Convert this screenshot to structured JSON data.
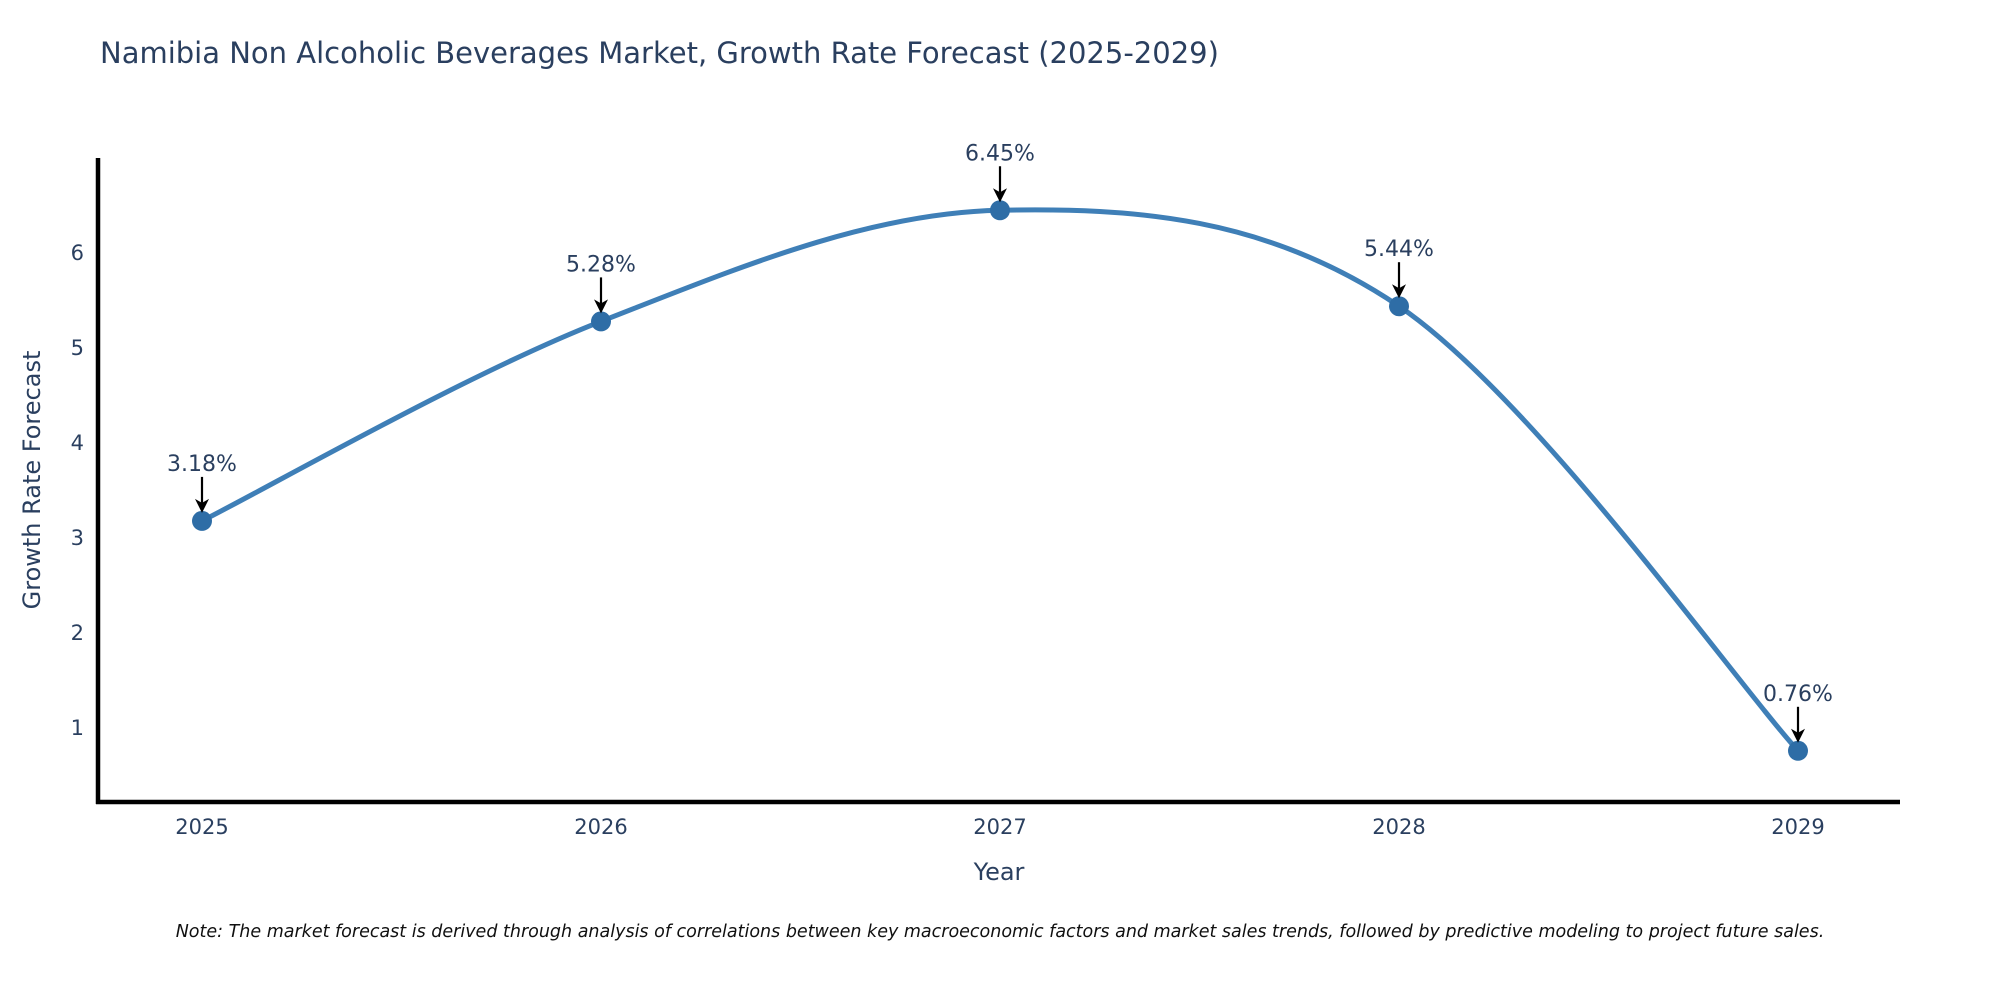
{
  "page": {
    "background": "#ffffff"
  },
  "chart_data": {
    "type": "line",
    "title": "Namibia Non Alcoholic Beverages Market, Growth Rate Forecast (2025-2029)",
    "xlabel": "Year",
    "ylabel": "Growth Rate Forecast",
    "categories": [
      "2025",
      "2026",
      "2027",
      "2028",
      "2029"
    ],
    "series": [
      {
        "name": "Growth Rate Forecast",
        "values": [
          3.18,
          5.28,
          6.45,
          5.44,
          0.76
        ]
      }
    ],
    "point_labels": [
      "3.18%",
      "5.28%",
      "6.45%",
      "5.44%",
      "0.76%"
    ],
    "y_ticks": [
      1,
      2,
      3,
      4,
      5,
      6
    ],
    "ylim": [
      0.3,
      6.8
    ],
    "line_shape": "spline",
    "grid": false,
    "legend": false,
    "colors": {
      "line": "#3f7fb7",
      "marker": "#2e6da6",
      "annotation_arrow": "#000000",
      "axis_line": "#000000",
      "text": "#2a3f5f"
    }
  },
  "footnote": "Note: The market forecast is derived through analysis of correlations between key macroeconomic factors and market sales trends, followed by predictive modeling to project future sales."
}
